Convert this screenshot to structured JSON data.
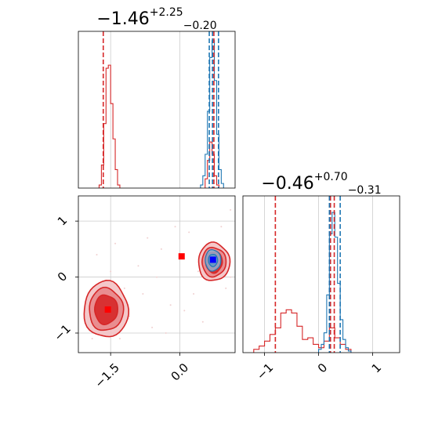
{
  "colors": {
    "red": "#d62728",
    "blue": "#1f77b4",
    "marker_blue": "#0000ff",
    "marker_red": "#ff0000",
    "grid": "#cccccc",
    "fill_dark": "#d62728",
    "fill_mid": "#e8868a",
    "fill_light": "#f3c2c4"
  },
  "chart_data": [
    {
      "type": "histogram",
      "panel": "top-left",
      "title": {
        "main": "−1.46",
        "sup": "+2.25",
        "sub": "−0.20"
      },
      "xlim": [
        -2.2,
        1.2
      ],
      "grid": true,
      "series": [
        {
          "name": "",
          "color": "#d62728",
          "bin_edges": [
            -1.75,
            -1.7,
            -1.65,
            -1.6,
            -1.55,
            -1.5,
            -1.45,
            -1.4,
            -1.35,
            -1.3
          ],
          "counts": [
            0.02,
            0.15,
            0.42,
            0.78,
            0.8,
            0.55,
            0.32,
            0.12,
            0.02
          ]
        },
        {
          "name": "",
          "color": "#d62728",
          "bin_edges": [
            0.55,
            0.6,
            0.65,
            0.7,
            0.75,
            0.8,
            0.85
          ],
          "counts": [
            0.06,
            0.18,
            0.3,
            0.22,
            0.08,
            0.02
          ]
        },
        {
          "name": "",
          "color": "#1f77b4",
          "bin_edges": [
            0.45,
            0.5,
            0.55,
            0.6,
            0.65,
            0.7,
            0.75,
            0.8,
            0.85,
            0.9,
            0.95
          ],
          "counts": [
            0.02,
            0.08,
            0.22,
            0.5,
            0.85,
            0.96,
            0.7,
            0.35,
            0.12,
            0.03
          ]
        }
      ],
      "vlines_red": [
        -1.66,
        0.74
      ],
      "vlines_blue": [
        0.64,
        0.71,
        0.84
      ]
    },
    {
      "type": "histogram",
      "panel": "bottom-right",
      "title": {
        "main": "−0.46",
        "sup": "+0.70",
        "sub": "−0.31"
      },
      "xlim": [
        -1.4,
        1.5
      ],
      "xticks": [
        -1,
        0,
        1
      ],
      "xtick_labels": [
        "−1",
        "0",
        "1"
      ],
      "grid": true,
      "series": [
        {
          "name": "",
          "color": "#d62728",
          "bin_edges": [
            -1.2,
            -1.1,
            -1.0,
            -0.9,
            -0.8,
            -0.7,
            -0.6,
            -0.5,
            -0.4,
            -0.3,
            -0.2,
            -0.1,
            0.0,
            0.1,
            0.2,
            0.3,
            0.4,
            0.5,
            0.6
          ],
          "counts": [
            0.02,
            0.04,
            0.07,
            0.11,
            0.15,
            0.24,
            0.26,
            0.24,
            0.16,
            0.08,
            0.09,
            0.05,
            0.03,
            0.07,
            0.15,
            0.09,
            0.05,
            0.02
          ]
        },
        {
          "name": "",
          "color": "#1f77b4",
          "bin_edges": [
            0.0,
            0.05,
            0.1,
            0.15,
            0.2,
            0.25,
            0.3,
            0.35,
            0.4,
            0.45,
            0.5,
            0.55,
            0.6
          ],
          "counts": [
            0.02,
            0.05,
            0.12,
            0.35,
            0.72,
            0.85,
            0.7,
            0.42,
            0.2,
            0.08,
            0.03,
            0.01
          ]
        }
      ],
      "vlines_red": [
        -0.8,
        0.22,
        0.29
      ],
      "vlines_blue": [
        0.2,
        0.4
      ]
    },
    {
      "type": "contour",
      "panel": "bottom-left",
      "xlim": [
        -2.2,
        1.2
      ],
      "ylim": [
        -1.35,
        1.45
      ],
      "xticks": [
        -1.5,
        0.0
      ],
      "xtick_labels": [
        "−1.5",
        "0.0"
      ],
      "yticks": [
        -1,
        0,
        1
      ],
      "ytick_labels": [
        "−1",
        "0",
        "1"
      ],
      "grid": true,
      "contours_red": [
        {
          "center": [
            -1.6,
            -0.58
          ],
          "levels": [
            [
              0.48,
              0.5
            ],
            [
              0.37,
              0.38
            ],
            [
              0.25,
              0.26
            ]
          ]
        },
        {
          "center": [
            0.74,
            0.27
          ],
          "levels": [
            [
              0.34,
              0.34
            ],
            [
              0.26,
              0.26
            ],
            [
              0.18,
              0.19
            ]
          ]
        }
      ],
      "contours_blue": [
        {
          "center": [
            0.72,
            0.3
          ],
          "levels": [
            [
              0.17,
              0.19
            ],
            [
              0.1,
              0.11
            ]
          ]
        }
      ],
      "markers": [
        {
          "x": 0.04,
          "y": 0.37,
          "color": "#ff0000"
        },
        {
          "x": 0.72,
          "y": 0.31,
          "color": "#0000ff"
        },
        {
          "x": -1.56,
          "y": -0.58,
          "color": "#ff0000"
        }
      ],
      "scatter_points": [
        [
          -1.2,
          -0.2
        ],
        [
          -0.9,
          0.2
        ],
        [
          -0.6,
          -0.9
        ],
        [
          -0.4,
          0.5
        ],
        [
          -0.2,
          -0.5
        ],
        [
          -1.8,
          0.4
        ],
        [
          -1.5,
          0.1
        ],
        [
          -1.3,
          -1.1
        ],
        [
          -1.1,
          -0.7
        ],
        [
          0.3,
          -0.3
        ],
        [
          0.2,
          0.8
        ],
        [
          0.5,
          -0.8
        ],
        [
          -0.5,
          0.0
        ],
        [
          -0.8,
          -0.3
        ],
        [
          1.1,
          1.2
        ],
        [
          1.0,
          -0.2
        ],
        [
          0.9,
          0.9
        ],
        [
          -1.4,
          0.6
        ],
        [
          -0.3,
          -1.0
        ],
        [
          0.4,
          0.1
        ],
        [
          1.1,
          0.0
        ],
        [
          -1.9,
          -1.1
        ],
        [
          -0.1,
          0.9
        ],
        [
          0.1,
          -0.6
        ],
        [
          -0.7,
          0.7
        ]
      ]
    }
  ]
}
